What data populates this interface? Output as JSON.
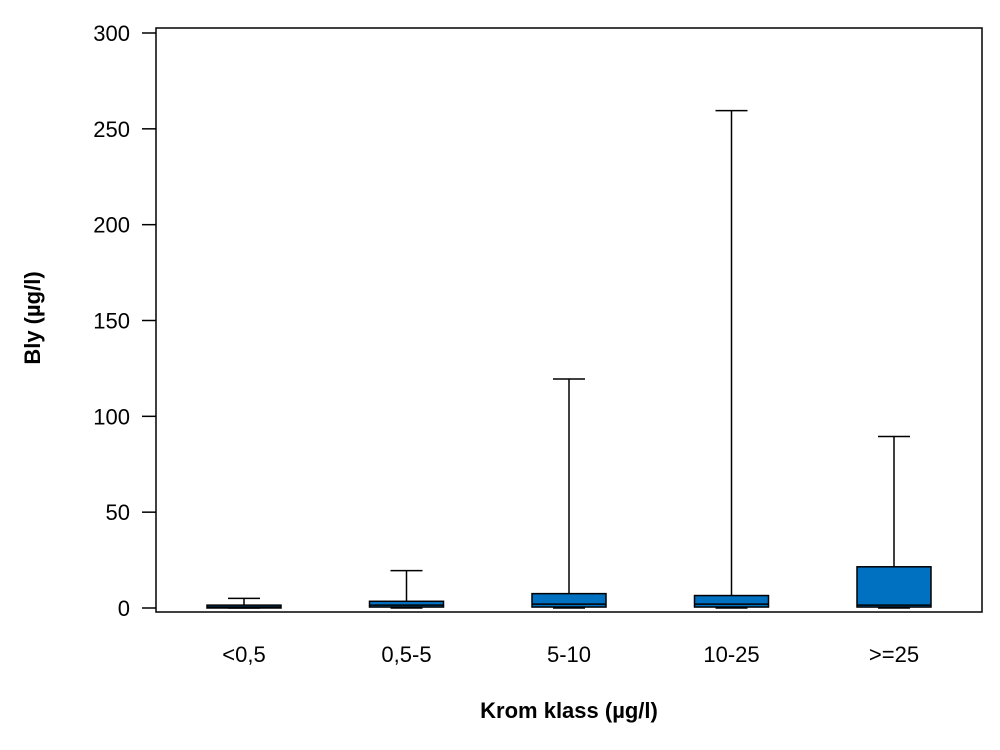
{
  "chart_data": {
    "type": "boxplot",
    "title": "",
    "xlabel": "Krom klass (µg/l)",
    "ylabel": "Bly (µg/l)",
    "ylim": [
      0,
      300
    ],
    "yticks": [
      0,
      50,
      100,
      150,
      200,
      250,
      300
    ],
    "grid": false,
    "box_color": "#0070C0",
    "categories": [
      "<0,5",
      "0,5-5",
      "5-10",
      "10-25",
      ">=25"
    ],
    "boxes": [
      {
        "category": "<0,5",
        "min": 0,
        "q1": 0,
        "median": 0.5,
        "q3": 1.5,
        "max": 5
      },
      {
        "category": "0,5-5",
        "min": 0,
        "q1": 0.5,
        "median": 1.5,
        "q3": 3.5,
        "max": 19.5
      },
      {
        "category": "5-10",
        "min": 0,
        "q1": 0.5,
        "median": 2,
        "q3": 7.5,
        "max": 119.5
      },
      {
        "category": "10-25",
        "min": 0,
        "q1": 0.5,
        "median": 2,
        "q3": 6.5,
        "max": 259.5
      },
      {
        "category": ">=25",
        "min": 0,
        "q1": 0.5,
        "median": 1.5,
        "q3": 21.5,
        "max": 89.5
      }
    ]
  }
}
